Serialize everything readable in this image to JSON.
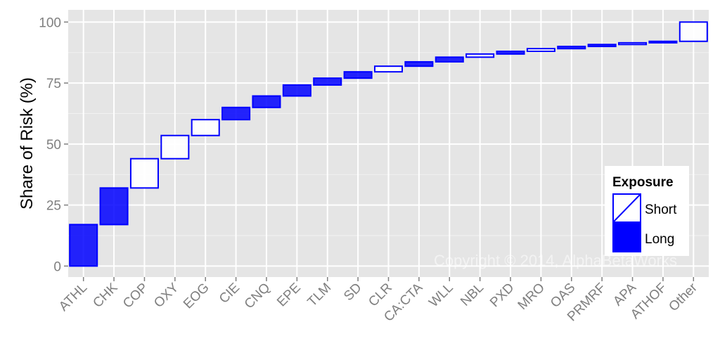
{
  "chart_data": {
    "type": "waterfall",
    "title": "",
    "xlabel": "",
    "ylabel": "Share of Risk (%)",
    "ylim": [
      -4.5,
      105
    ],
    "yticks": [
      0,
      25,
      50,
      75,
      100
    ],
    "grid": true,
    "legend_position": "right",
    "legend": {
      "title": "Exposure",
      "entries": [
        {
          "key": "Short",
          "label": "Short"
        },
        {
          "key": "Long",
          "label": "Long"
        }
      ]
    },
    "categories": [
      "ATHL",
      "CHK",
      "COP",
      "OXY",
      "EOG",
      "CIE",
      "CNQ",
      "EPE",
      "TLM",
      "SD",
      "CLR",
      "CA:CTA",
      "WLL",
      "NBL",
      "PXD",
      "MRO",
      "OAS",
      "PRMRF",
      "APA",
      "ATHOF",
      "Other"
    ],
    "bars": [
      {
        "category": "ATHL",
        "start": 0.0,
        "end": 17.0,
        "exposure": "Long"
      },
      {
        "category": "CHK",
        "start": 17.0,
        "end": 32.0,
        "exposure": "Long"
      },
      {
        "category": "COP",
        "start": 32.0,
        "end": 44.0,
        "exposure": "Short"
      },
      {
        "category": "OXY",
        "start": 44.0,
        "end": 53.5,
        "exposure": "Short"
      },
      {
        "category": "EOG",
        "start": 53.5,
        "end": 60.0,
        "exposure": "Short"
      },
      {
        "category": "CIE",
        "start": 60.0,
        "end": 65.0,
        "exposure": "Long"
      },
      {
        "category": "CNQ",
        "start": 65.0,
        "end": 69.7,
        "exposure": "Long"
      },
      {
        "category": "EPE",
        "start": 69.7,
        "end": 74.2,
        "exposure": "Long"
      },
      {
        "category": "TLM",
        "start": 74.2,
        "end": 77.0,
        "exposure": "Long"
      },
      {
        "category": "SD",
        "start": 77.0,
        "end": 79.6,
        "exposure": "Long"
      },
      {
        "category": "CLR",
        "start": 79.6,
        "end": 81.9,
        "exposure": "Short"
      },
      {
        "category": "CA:CTA",
        "start": 81.9,
        "end": 83.7,
        "exposure": "Long"
      },
      {
        "category": "WLL",
        "start": 83.7,
        "end": 85.6,
        "exposure": "Long"
      },
      {
        "category": "NBL",
        "start": 85.6,
        "end": 86.9,
        "exposure": "Short"
      },
      {
        "category": "PXD",
        "start": 86.9,
        "end": 88.0,
        "exposure": "Long"
      },
      {
        "category": "MRO",
        "start": 88.0,
        "end": 89.1,
        "exposure": "Short"
      },
      {
        "category": "OAS",
        "start": 89.1,
        "end": 90.0,
        "exposure": "Long"
      },
      {
        "category": "PRMRF",
        "start": 90.0,
        "end": 90.8,
        "exposure": "Long"
      },
      {
        "category": "APA",
        "start": 90.8,
        "end": 91.5,
        "exposure": "Short"
      },
      {
        "category": "ATHOF",
        "start": 91.5,
        "end": 92.1,
        "exposure": "Long"
      },
      {
        "category": "Other",
        "start": 92.1,
        "end": 100.0,
        "exposure": "Short"
      }
    ],
    "colors": {
      "panel_bg": "#e5e5e5",
      "grid_major": "#ffffff",
      "grid_minor": "#f2f2f2",
      "long_fill": "#0000ff",
      "short_fill": "#ffffff",
      "edge": "#0000ff",
      "tick_text": "#7f7f7f"
    },
    "watermark": "Copyright © 2014, AlphaBetaWorks"
  }
}
